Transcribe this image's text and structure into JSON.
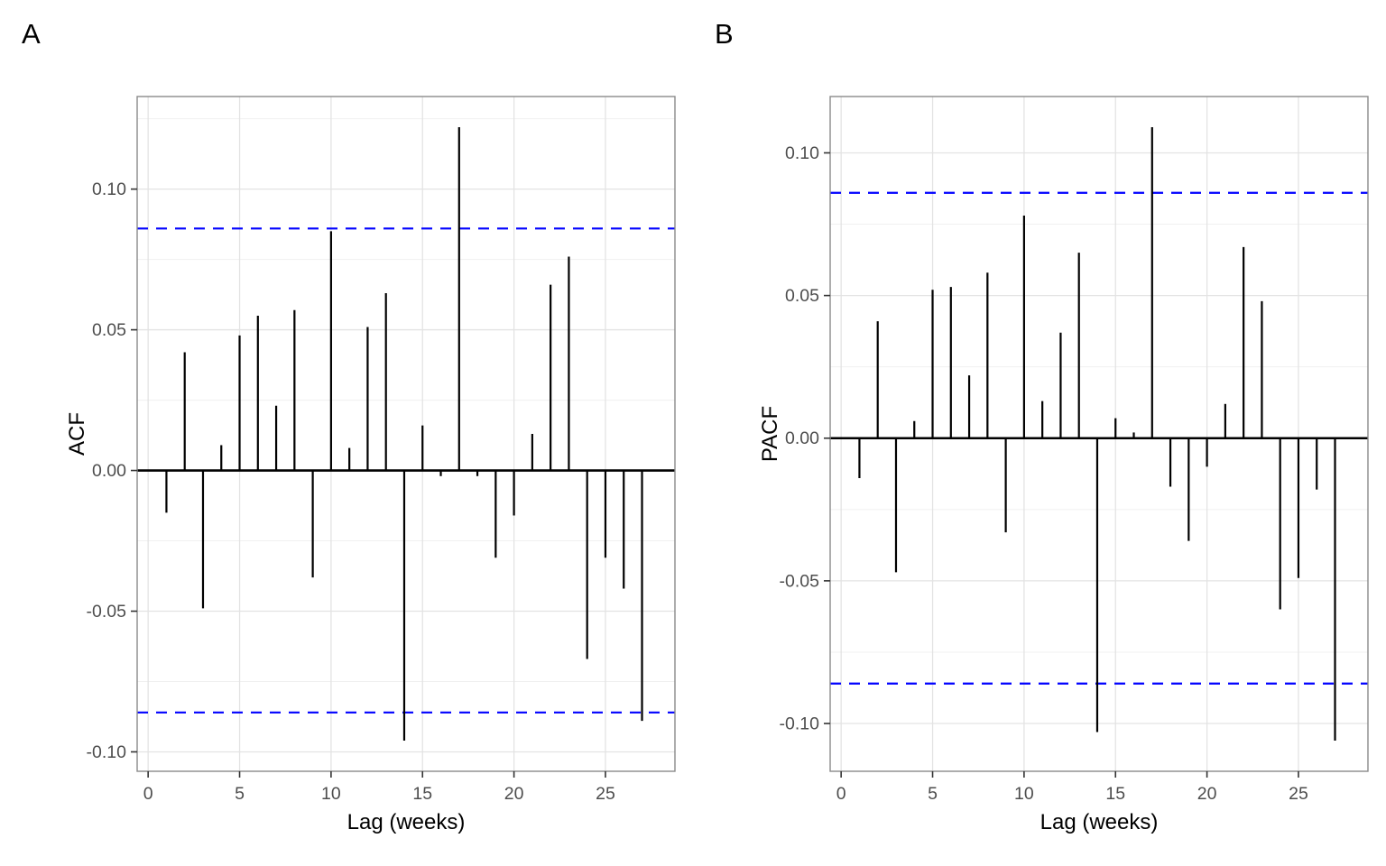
{
  "figure": {
    "background": "#ffffff",
    "panel_tags": [
      "A",
      "B"
    ]
  },
  "colors": {
    "bar": "#000000",
    "zero_line": "#000000",
    "ci_line": "#0000ff",
    "grid_major": "#e3e3e3",
    "grid_minor": "#f0f0f0",
    "panel_border": "#8a8a8a",
    "tick_mark": "#333333",
    "tick_text": "#4d4d4d",
    "title_text": "#000000"
  },
  "chart_data": [
    {
      "type": "bar",
      "title": "A",
      "xlabel": "Lag (weeks)",
      "ylabel": "ACF",
      "x": [
        1,
        2,
        3,
        4,
        5,
        6,
        7,
        8,
        9,
        10,
        11,
        12,
        13,
        14,
        15,
        16,
        17,
        18,
        19,
        20,
        21,
        22,
        23,
        24,
        25,
        26,
        27
      ],
      "values": [
        -0.015,
        0.042,
        -0.049,
        0.009,
        0.048,
        0.055,
        0.023,
        0.057,
        -0.038,
        0.085,
        0.008,
        0.051,
        0.063,
        -0.096,
        0.016,
        -0.002,
        0.122,
        -0.002,
        -0.031,
        -0.016,
        0.013,
        0.066,
        0.076,
        -0.067,
        -0.031,
        -0.042,
        -0.089
      ],
      "ci_upper": 0.086,
      "ci_lower": -0.086,
      "ci_style": "dashed-blue",
      "x_ticks": [
        0,
        5,
        10,
        15,
        20,
        25
      ],
      "y_ticks": [
        0.1,
        0.05,
        0.0,
        -0.05,
        -0.1
      ],
      "y_tick_labels": [
        "0.10",
        "0.05",
        "0.00",
        "-0.05",
        "-0.10"
      ],
      "xlim": [
        -0.6,
        28.8
      ],
      "grid": "y-major+y-minor+x-major",
      "legend": "none"
    },
    {
      "type": "bar",
      "title": "B",
      "xlabel": "Lag (weeks)",
      "ylabel": "PACF",
      "x": [
        1,
        2,
        3,
        4,
        5,
        6,
        7,
        8,
        9,
        10,
        11,
        12,
        13,
        14,
        15,
        16,
        17,
        18,
        19,
        20,
        21,
        22,
        23,
        24,
        25,
        26,
        27
      ],
      "values": [
        -0.014,
        0.041,
        -0.047,
        0.006,
        0.052,
        0.053,
        0.022,
        0.058,
        -0.033,
        0.078,
        0.013,
        0.037,
        0.065,
        -0.103,
        0.007,
        0.002,
        0.109,
        -0.017,
        -0.036,
        -0.01,
        0.012,
        0.067,
        0.048,
        -0.06,
        -0.049,
        -0.018,
        -0.106
      ],
      "ci_upper": 0.086,
      "ci_lower": -0.086,
      "ci_style": "dashed-blue",
      "x_ticks": [
        0,
        5,
        10,
        15,
        20,
        25
      ],
      "y_ticks": [
        0.1,
        0.05,
        0.0,
        -0.05,
        -0.1
      ],
      "y_tick_labels": [
        "0.10",
        "0.05",
        "0.00",
        "-0.05",
        "-0.10"
      ],
      "xlim": [
        -0.6,
        28.8
      ],
      "grid": "y-major+y-minor+x-major",
      "legend": "none"
    }
  ]
}
